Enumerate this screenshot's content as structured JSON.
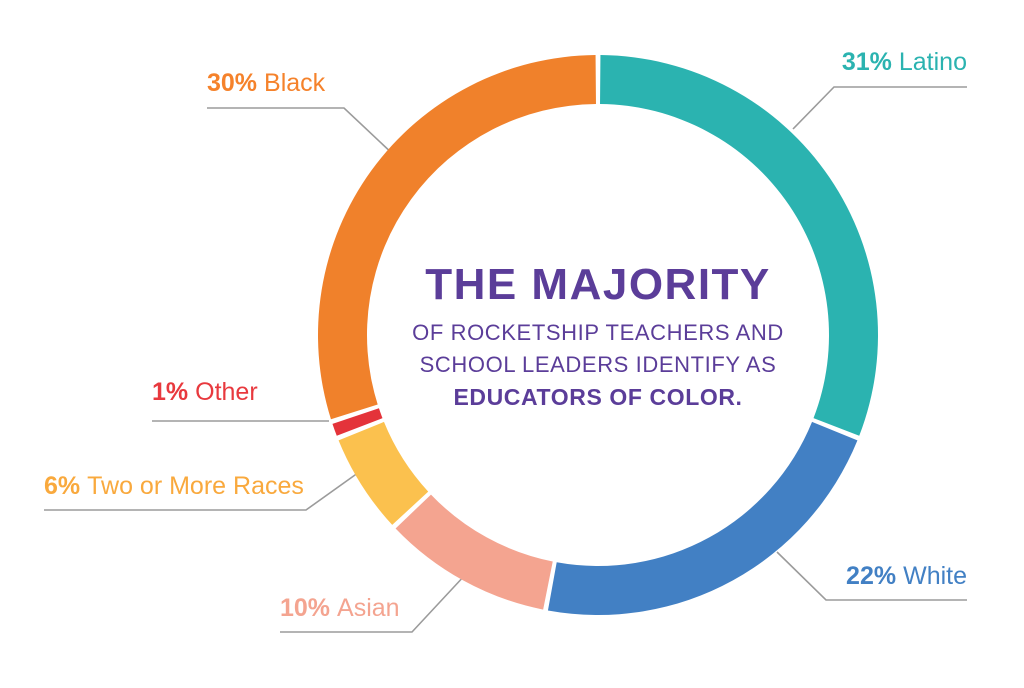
{
  "chart_data": {
    "type": "donut",
    "direction": "clockwise",
    "start_at": "top",
    "title": "THE MAJORITY OF ROCKETSHIP TEACHERS AND SCHOOL LEADERS IDENTIFY AS EDUCATORS OF COLOR.",
    "segments": [
      {
        "label": "Latino",
        "pct": "31%",
        "value": 31,
        "color": "#2BB3B0",
        "label_color": "#2BB3B0"
      },
      {
        "label": "White",
        "pct": "22%",
        "value": 22,
        "color": "#4280C4",
        "label_color": "#4280C4"
      },
      {
        "label": "Asian",
        "pct": "10%",
        "value": 10,
        "color": "#F4A490",
        "label_color": "#F4A490"
      },
      {
        "label": "Two or More Races",
        "pct": "6%",
        "value": 6,
        "color": "#FBC14E",
        "label_color": "#F9A93D"
      },
      {
        "label": "Other",
        "pct": "1%",
        "value": 1,
        "color": "#E4333A",
        "label_color": "#E8393E"
      },
      {
        "label": "Black",
        "pct": "30%",
        "value": 30,
        "color": "#F0812B",
        "label_color": "#F5822B"
      }
    ],
    "center_text": {
      "line1": "THE MAJORITY",
      "line2": "OF ROCKETSHIP TEACHERS AND",
      "line3": "SCHOOL LEADERS IDENTIFY AS",
      "line4": "EDUCATORS OF COLOR."
    },
    "center_text_color": "#5B3D99",
    "leader_line_color": "#9B9B9B",
    "background": "#FFFFFF",
    "legend_position": "labels-around-chart"
  }
}
